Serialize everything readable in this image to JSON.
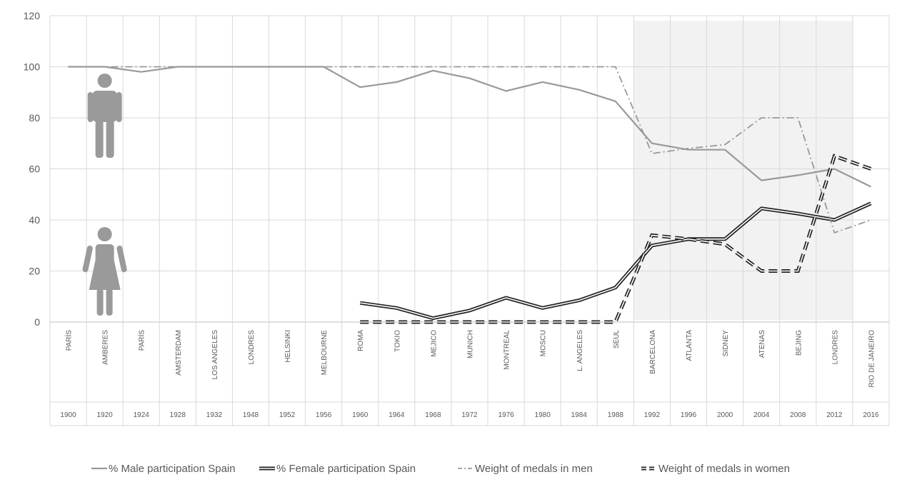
{
  "chart_data": {
    "type": "line",
    "title": "",
    "xlabel": "",
    "ylabel": "",
    "ylim": [
      0,
      120
    ],
    "yticks": [
      0,
      20,
      40,
      60,
      80,
      100,
      120
    ],
    "grid": true,
    "legend_position": "bottom",
    "highlight_region": {
      "from_index": 16,
      "to_index": 21,
      "color": "#f2f2f2"
    },
    "categories": [
      "PARÍS",
      "AMBERES",
      "PARÍS",
      "AMSTERDAM",
      "LOS ANGELES",
      "LONDRES",
      "HELSINKI",
      "MELBOURNE",
      "ROMA",
      "TOKIO",
      "MEJICO",
      "MUNICH",
      "MONTREAL",
      "MOSCU",
      "L. ANGELES",
      "SEUL",
      "BARCELONA",
      "ATLANTA",
      "SIDNEY",
      "ATENAS",
      "BEJING",
      "LONDRES",
      "RIO DE JANEIRO"
    ],
    "years": [
      "1900",
      "1920",
      "1924",
      "1928",
      "1932",
      "1948",
      "1952",
      "1956",
      "1960",
      "1964",
      "1968",
      "1972",
      "1976",
      "1980",
      "1984",
      "1988",
      "1992",
      "1996",
      "2000",
      "2004",
      "2008",
      "2012",
      "2016"
    ],
    "series": [
      {
        "name": "% Male participation Spain",
        "style": "solid",
        "color": "#999999",
        "values": [
          100,
          100,
          98,
          100,
          100,
          100,
          100,
          100,
          92,
          94,
          98.5,
          95.5,
          90.5,
          94,
          91,
          86.5,
          70,
          67.5,
          67.5,
          55.5,
          57.5,
          60,
          53
        ]
      },
      {
        "name": "% Female participation Spain",
        "style": "double",
        "color": "#222222",
        "values": [
          null,
          null,
          null,
          null,
          null,
          null,
          null,
          null,
          7.5,
          5.5,
          1.5,
          4.5,
          9.5,
          5.5,
          8.5,
          13.5,
          30,
          32.5,
          32.5,
          44.5,
          42.5,
          40,
          46.5
        ]
      },
      {
        "name": "Weight of medals in men",
        "style": "dashdot",
        "color": "#999999",
        "values": [
          100,
          100,
          100,
          100,
          100,
          100,
          100,
          100,
          100,
          100,
          100,
          100,
          100,
          100,
          100,
          100,
          66,
          68,
          69.5,
          80,
          80,
          35,
          40
        ]
      },
      {
        "name": "Weight of medals in women",
        "style": "dashed-double",
        "color": "#222222",
        "values": [
          null,
          null,
          null,
          null,
          null,
          null,
          null,
          null,
          0,
          0,
          0,
          0,
          0,
          0,
          0,
          0,
          34,
          32.5,
          30.5,
          20,
          20,
          65,
          60
        ]
      }
    ],
    "icons": [
      {
        "name": "male-figure-icon",
        "near_value": 80
      },
      {
        "name": "female-figure-icon",
        "near_value": 28
      }
    ]
  }
}
